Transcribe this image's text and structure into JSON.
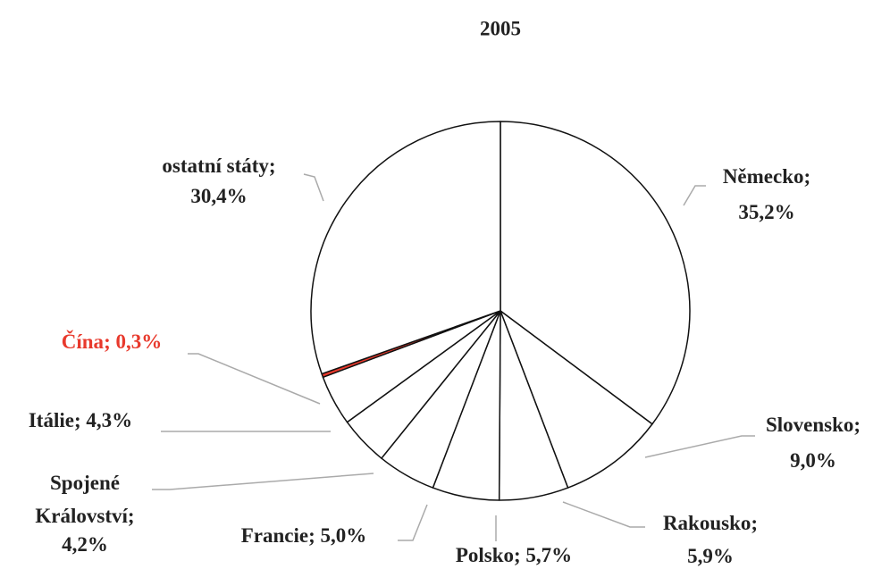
{
  "chart_data": {
    "type": "pie",
    "title": "2005",
    "categories": [
      "Německo",
      "Slovensko",
      "Rakousko",
      "Polsko",
      "Francie",
      "Spojené Království",
      "Itálie",
      "Čína",
      "ostatní státy"
    ],
    "values": [
      35.2,
      9.0,
      5.9,
      5.7,
      5.0,
      4.2,
      4.3,
      0.3,
      30.4
    ],
    "value_labels": [
      "35,2%",
      "9,0%",
      "5,9%",
      "5,7%",
      "5,0%",
      "4,2%",
      "4,3%",
      "0,3%",
      "30,4%"
    ],
    "separator": "; ",
    "colors": [
      "#ffffff",
      "#ffffff",
      "#ffffff",
      "#ffffff",
      "#ffffff",
      "#ffffff",
      "#ffffff",
      "#e8392c",
      "#ffffff"
    ],
    "label_colors": [
      "#222222",
      "#222222",
      "#222222",
      "#222222",
      "#222222",
      "#222222",
      "#222222",
      "#e8392c",
      "#222222"
    ]
  }
}
